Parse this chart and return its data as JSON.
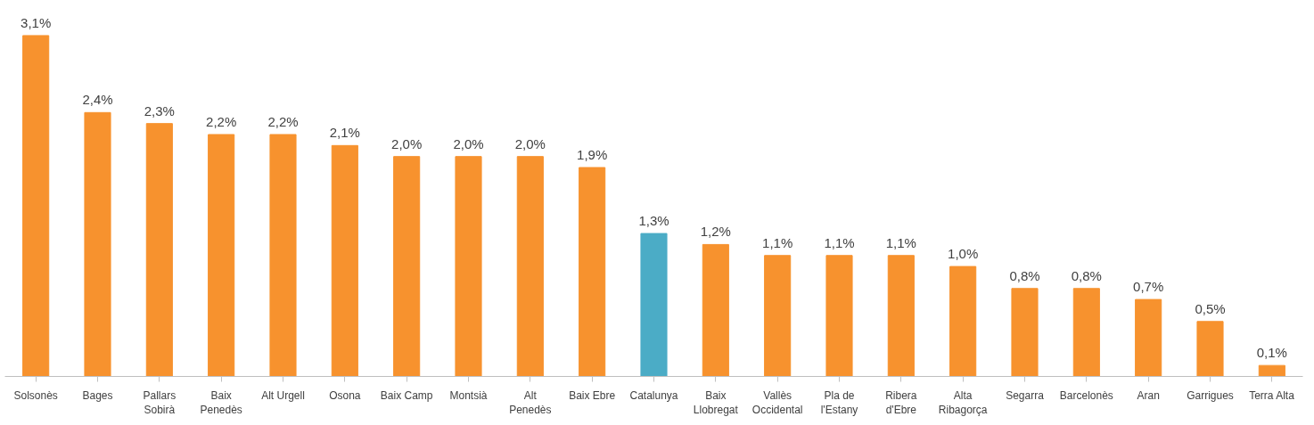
{
  "chart_data": {
    "type": "bar",
    "categories": [
      "Solsonès",
      "Bages",
      "Pallars\nSobirà",
      "Baix\nPenedès",
      "Alt Urgell",
      "Osona",
      "Baix Camp",
      "Montsià",
      "Alt\nPenedès",
      "Baix Ebre",
      "Catalunya",
      "Baix\nLlobregat",
      "Vallès\nOccidental",
      "Pla de\nl'Estany",
      "Ribera\nd'Ebre",
      "Alta\nRibagorça",
      "Segarra",
      "Barcelonès",
      "Aran",
      "Garrigues",
      "Terra Alta"
    ],
    "values": [
      3.1,
      2.4,
      2.3,
      2.2,
      2.2,
      2.1,
      2.0,
      2.0,
      2.0,
      1.9,
      1.3,
      1.2,
      1.1,
      1.1,
      1.1,
      1.0,
      0.8,
      0.8,
      0.7,
      0.5,
      0.1
    ],
    "colors": [
      "#f7922e",
      "#f7922e",
      "#f7922e",
      "#f7922e",
      "#f7922e",
      "#f7922e",
      "#f7922e",
      "#f7922e",
      "#f7922e",
      "#f7922e",
      "#4bacc6",
      "#f7922e",
      "#f7922e",
      "#f7922e",
      "#f7922e",
      "#f7922e",
      "#f7922e",
      "#f7922e",
      "#f7922e",
      "#f7922e",
      "#f7922e"
    ],
    "value_labels": [
      "3,1%",
      "2,4%",
      "2,3%",
      "2,2%",
      "2,2%",
      "2,1%",
      "2,0%",
      "2,0%",
      "2,0%",
      "1,9%",
      "1,3%",
      "1,2%",
      "1,1%",
      "1,1%",
      "1,1%",
      "1,0%",
      "0,8%",
      "0,8%",
      "0,7%",
      "0,5%",
      "0,1%"
    ]
  }
}
